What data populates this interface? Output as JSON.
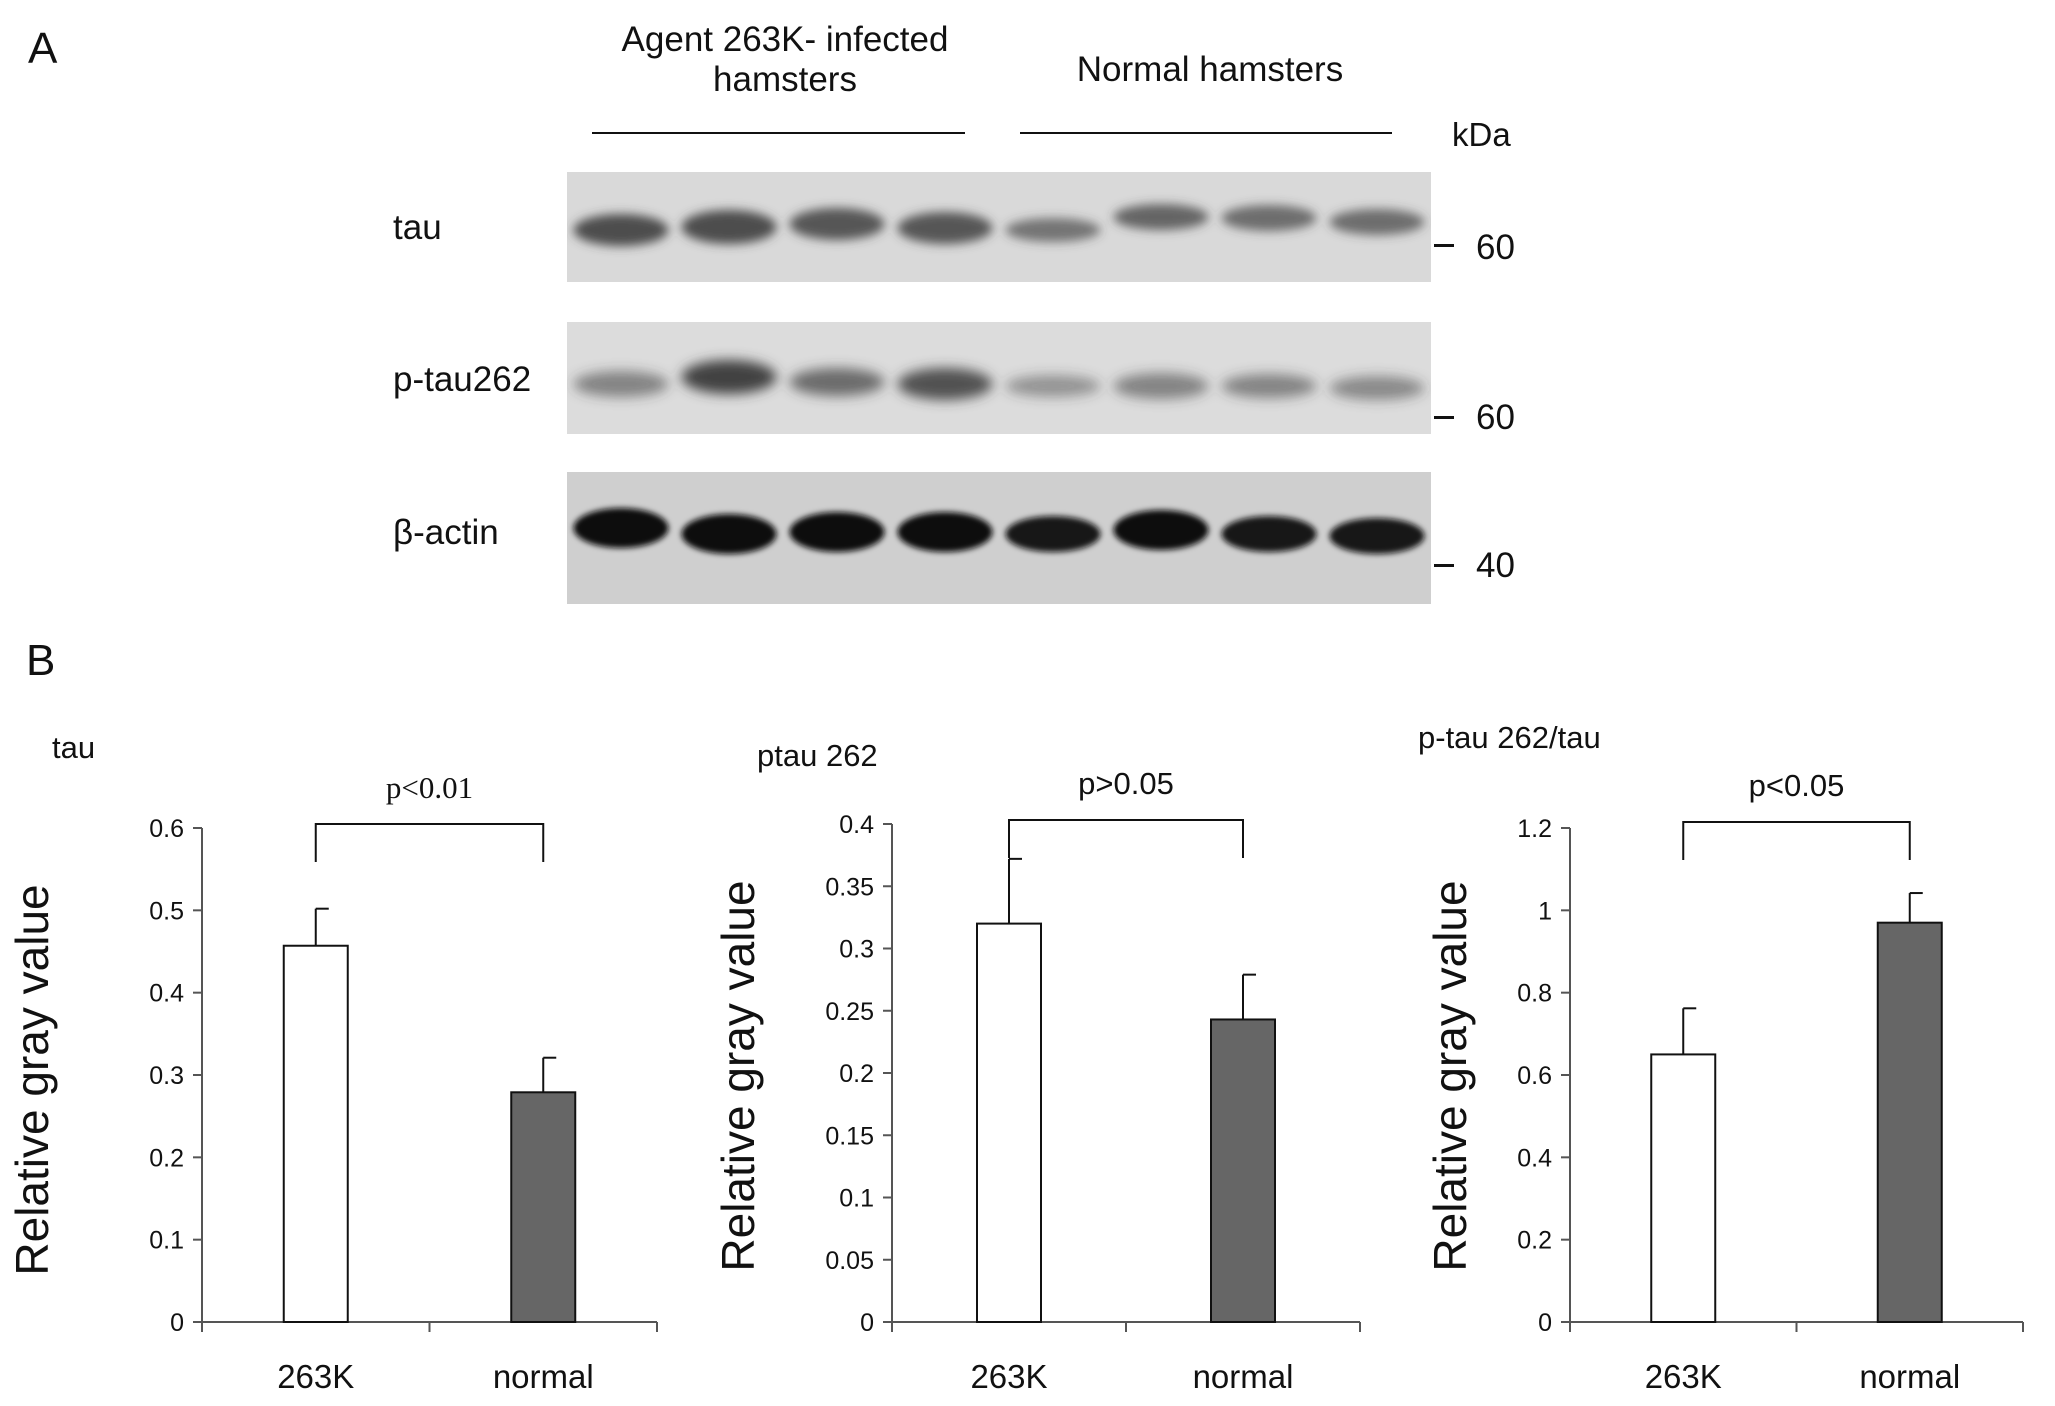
{
  "panelA": {
    "label": "A",
    "groups": [
      {
        "line1": "Agent  263K- infected",
        "line2": "hamsters"
      },
      {
        "line1": "Normal hamsters",
        "line2": ""
      }
    ],
    "kda_label": "kDa",
    "rows": [
      {
        "label": "tau",
        "marker": "60"
      },
      {
        "label": "p-tau262",
        "marker": "60"
      },
      {
        "label": "β-actin",
        "marker": "40"
      }
    ],
    "lanes_per_group": 4
  },
  "panelB": {
    "label": "B"
  },
  "chart_data": [
    {
      "type": "bar",
      "title": "tau",
      "ylabel": "Relative gray value",
      "categories": [
        "263K",
        "normal"
      ],
      "values": [
        0.457,
        0.279
      ],
      "errors": [
        0.045,
        0.042
      ],
      "ylim": [
        0,
        0.6
      ],
      "yticks": [
        "0",
        "0.1",
        "0.2",
        "0.3",
        "0.4",
        "0.5",
        "0.6"
      ],
      "significance": "p<0.01",
      "bar_colors": [
        "#ffffff",
        "#666666"
      ]
    },
    {
      "type": "bar",
      "title": "ptau 262",
      "ylabel": "Relative gray value",
      "categories": [
        "263K",
        "normal"
      ],
      "values": [
        0.32,
        0.243
      ],
      "errors": [
        0.052,
        0.036
      ],
      "ylim": [
        0,
        0.4
      ],
      "yticks": [
        "0",
        "0.05",
        "0.1",
        "0.15",
        "0.2",
        "0.25",
        "0.3",
        "0.35",
        "0.4"
      ],
      "significance": "p>0.05",
      "bar_colors": [
        "#ffffff",
        "#666666"
      ]
    },
    {
      "type": "bar",
      "title": "p-tau 262/tau",
      "ylabel": "Relative gray value",
      "categories": [
        "263K",
        "normal"
      ],
      "values": [
        0.65,
        0.97
      ],
      "errors": [
        0.112,
        0.072
      ],
      "ylim": [
        0,
        1.2
      ],
      "yticks": [
        "0",
        "0.2",
        "0.4",
        "0.6",
        "0.8",
        "1",
        "1.2"
      ],
      "significance": "p<0.05",
      "bar_colors": [
        "#ffffff",
        "#666666"
      ]
    }
  ]
}
